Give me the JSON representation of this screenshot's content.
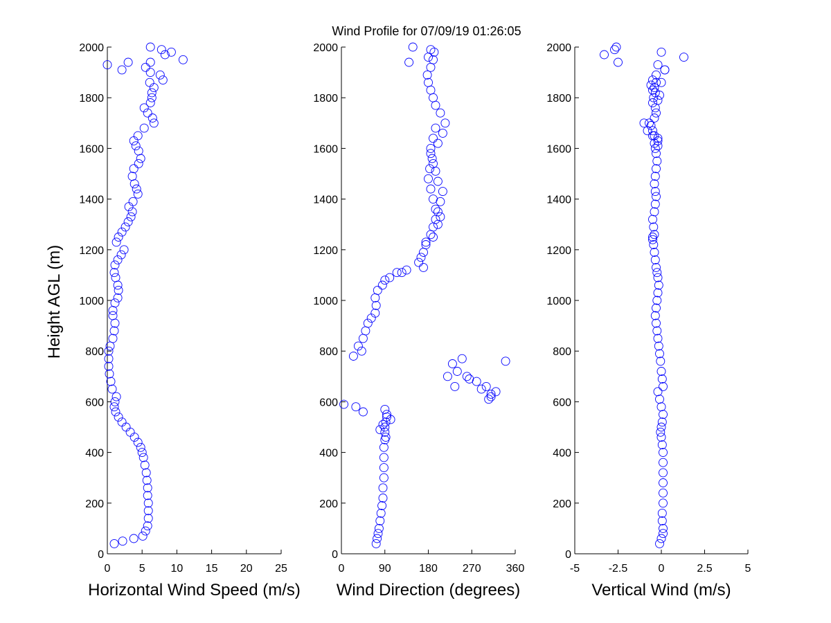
{
  "figure": {
    "title": "Wind Profile for  07/09/19 01:26:05",
    "ylabel": "Height AGL (m)",
    "marker_color": "#0000ff"
  },
  "chart_data": [
    {
      "type": "scatter",
      "xlabel": "Horizontal Wind Speed (m/s)",
      "ylabel": "Height AGL (m)",
      "xlim": [
        0,
        25
      ],
      "ylim": [
        0,
        2000
      ],
      "xticks": [
        "0",
        "5",
        "10",
        "15",
        "20",
        "25"
      ],
      "yticks": [
        "0",
        "200",
        "400",
        "600",
        "800",
        "1000",
        "1200",
        "1400",
        "1600",
        "1800",
        "2000"
      ],
      "x": [
        1.0,
        2.2,
        3.8,
        5.1,
        5.5,
        5.8,
        5.9,
        5.9,
        5.9,
        5.8,
        5.8,
        5.7,
        5.6,
        5.4,
        5.2,
        5.0,
        4.8,
        4.4,
        3.9,
        3.3,
        2.7,
        2.1,
        1.6,
        1.2,
        1.0,
        1.1,
        1.3,
        0.7,
        0.5,
        0.3,
        0.2,
        0.2,
        0.2,
        0.4,
        0.8,
        1.0,
        1.1,
        0.8,
        0.8,
        1.1,
        1.5,
        1.6,
        1.5,
        1.2,
        1.0,
        1.1,
        1.5,
        2.0,
        2.4,
        1.3,
        1.6,
        2.1,
        2.6,
        3.0,
        3.4,
        3.6,
        3.1,
        3.7,
        4.4,
        4.2,
        3.9,
        3.6,
        3.8,
        4.5,
        4.8,
        4.5,
        4.1,
        3.8,
        4.4,
        5.3,
        6.7,
        6.5,
        5.8,
        5.3,
        6.2,
        6.4,
        6.4,
        6.7,
        6.1,
        8.0,
        7.6,
        6.2,
        5.5,
        6.2,
        10.9,
        8.3,
        9.2,
        7.8,
        6.2,
        3.0,
        2.1,
        0.0
      ],
      "y": [
        40,
        50,
        60,
        70,
        90,
        110,
        140,
        170,
        200,
        230,
        260,
        290,
        320,
        350,
        380,
        400,
        420,
        440,
        460,
        480,
        500,
        520,
        540,
        560,
        580,
        600,
        620,
        650,
        680,
        710,
        740,
        770,
        800,
        820,
        850,
        880,
        910,
        940,
        960,
        990,
        1010,
        1040,
        1060,
        1090,
        1110,
        1140,
        1160,
        1180,
        1200,
        1230,
        1250,
        1270,
        1290,
        1310,
        1330,
        1350,
        1370,
        1390,
        1420,
        1440,
        1460,
        1490,
        1520,
        1540,
        1560,
        1590,
        1610,
        1630,
        1650,
        1680,
        1700,
        1720,
        1740,
        1760,
        1780,
        1800,
        1820,
        1840,
        1860,
        1870,
        1890,
        1900,
        1920,
        1940,
        1950,
        1970,
        1980,
        1990,
        2000,
        1940,
        1910,
        1930
      ]
    },
    {
      "type": "scatter",
      "xlabel": "Wind Direction (degrees)",
      "ylabel": "Height AGL (m)",
      "xlim": [
        0,
        360
      ],
      "ylim": [
        0,
        2000
      ],
      "xticks": [
        "0",
        "90",
        "180",
        "270",
        "360"
      ],
      "yticks": [
        "0",
        "200",
        "400",
        "600",
        "800",
        "1000",
        "1200",
        "1400",
        "1600",
        "1800",
        "2000"
      ],
      "x": [
        72,
        74,
        76,
        78,
        80,
        82,
        84,
        86,
        86,
        88,
        88,
        88,
        88,
        90,
        90,
        90,
        92,
        94,
        94,
        90,
        86,
        102,
        80,
        92,
        5,
        30,
        45,
        25,
        35,
        42,
        45,
        50,
        55,
        62,
        70,
        72,
        70,
        75,
        85,
        90,
        100,
        115,
        160,
        170,
        175,
        185,
        190,
        195,
        200,
        205,
        210,
        200,
        195,
        190,
        185,
        200,
        210,
        215,
        205,
        195,
        190,
        185,
        180,
        178,
        185,
        190,
        192,
        195,
        190,
        185,
        188,
        183,
        180,
        185,
        190,
        195,
        205,
        200,
        190,
        175,
        125,
        135,
        140,
        148,
        185,
        180,
        170,
        165,
        230,
        240,
        260,
        280,
        300,
        320,
        310,
        235,
        220,
        250,
        265,
        290,
        305,
        310,
        340
      ],
      "y": [
        40,
        60,
        80,
        100,
        130,
        160,
        190,
        220,
        260,
        300,
        340,
        380,
        420,
        450,
        480,
        500,
        520,
        540,
        550,
        570,
        510,
        530,
        490,
        460,
        590,
        580,
        560,
        780,
        820,
        800,
        850,
        880,
        910,
        930,
        950,
        980,
        1010,
        1040,
        1060,
        1080,
        1090,
        1110,
        1150,
        1190,
        1220,
        1260,
        1290,
        1320,
        1350,
        1390,
        1430,
        1470,
        1510,
        1540,
        1580,
        1620,
        1660,
        1700,
        1740,
        1770,
        1800,
        1830,
        1860,
        1890,
        1920,
        1950,
        1980,
        1680,
        1640,
        1600,
        1560,
        1520,
        1480,
        1440,
        1400,
        1360,
        1330,
        1300,
        1250,
        1230,
        1110,
        1120,
        1940,
        2000,
        1990,
        1960,
        1130,
        1170,
        750,
        720,
        700,
        680,
        660,
        640,
        620,
        660,
        700,
        770,
        690,
        650,
        610,
        630,
        760
      ]
    },
    {
      "type": "scatter",
      "xlabel": "Vertical Wind (m/s)",
      "ylabel": "Height AGL (m)",
      "xlim": [
        -5,
        5
      ],
      "ylim": [
        0,
        2000
      ],
      "xticks": [
        "-5",
        "-2.5",
        "0",
        "2.5",
        "5"
      ],
      "yticks": [
        "0",
        "200",
        "400",
        "600",
        "800",
        "1000",
        "1200",
        "1400",
        "1600",
        "1800",
        "2000"
      ],
      "x": [
        -0.1,
        0.0,
        0.1,
        0.1,
        0.05,
        0.05,
        0.1,
        0.1,
        0.1,
        0.1,
        0.1,
        0.1,
        0.05,
        0.0,
        -0.05,
        0.0,
        0.05,
        0.1,
        0.0,
        -0.1,
        -0.2,
        0.1,
        0.05,
        0.0,
        -0.05,
        -0.1,
        -0.15,
        -0.2,
        -0.25,
        -0.3,
        -0.35,
        -0.3,
        -0.25,
        -0.2,
        -0.15,
        -0.2,
        -0.25,
        -0.3,
        -0.35,
        -0.4,
        -0.45,
        -0.5,
        -0.4,
        -0.45,
        -0.5,
        -0.4,
        -0.35,
        -0.3,
        -0.35,
        -0.4,
        -0.35,
        -0.3,
        -0.25,
        -0.3,
        -0.2,
        -0.2,
        -0.4,
        -0.5,
        -0.6,
        -0.7,
        -0.4,
        -0.3,
        -0.35,
        -0.5,
        -0.45,
        -0.35,
        -0.4,
        -0.3,
        -0.5,
        -0.6,
        -0.5,
        -0.2,
        -0.1,
        -1.0,
        -0.8,
        -0.5,
        -0.4,
        -0.35,
        -0.2,
        -0.5,
        0.0,
        -0.3,
        0.2,
        -3.3,
        -2.7,
        -2.6,
        -2.5,
        0.0,
        -0.2,
        0.2,
        1.3
      ],
      "y": [
        40,
        60,
        80,
        100,
        130,
        160,
        200,
        240,
        280,
        320,
        360,
        400,
        430,
        460,
        480,
        500,
        520,
        550,
        580,
        610,
        640,
        660,
        690,
        720,
        760,
        790,
        820,
        850,
        880,
        910,
        940,
        970,
        1000,
        1030,
        1060,
        1090,
        1110,
        1130,
        1160,
        1190,
        1220,
        1240,
        1260,
        1290,
        1320,
        1350,
        1380,
        1410,
        1430,
        1460,
        1490,
        1520,
        1550,
        1580,
        1610,
        1630,
        1650,
        1670,
        1690,
        1700,
        1720,
        1740,
        1760,
        1780,
        1800,
        1820,
        1840,
        1860,
        1870,
        1850,
        1830,
        1790,
        1810,
        1700,
        1670,
        1650,
        1620,
        1600,
        1640,
        1250,
        1860,
        1890,
        1910,
        1970,
        1990,
        2000,
        1940,
        1980,
        1930,
        1910,
        1960
      ]
    }
  ]
}
